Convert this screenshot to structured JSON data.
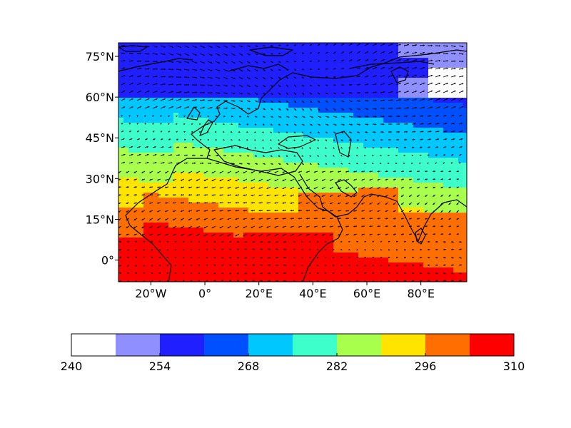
{
  "map": {
    "region": {
      "lon_min": -32,
      "lon_max": 97,
      "lat_min": -8,
      "lat_max": 80
    },
    "y_ticks": [
      {
        "lat": 75,
        "label": "75°N"
      },
      {
        "lat": 60,
        "label": "60°N"
      },
      {
        "lat": 45,
        "label": "45°N"
      },
      {
        "lat": 30,
        "label": "30°N"
      },
      {
        "lat": 15,
        "label": "15°N"
      },
      {
        "lat": 0,
        "label": "0°"
      }
    ],
    "x_ticks": [
      {
        "lon": -20,
        "label": "20°W"
      },
      {
        "lon": 0,
        "label": "0°"
      },
      {
        "lon": 20,
        "label": "20°E"
      },
      {
        "lon": 40,
        "label": "40°E"
      },
      {
        "lon": 60,
        "label": "60°E"
      },
      {
        "lon": 80,
        "label": "80°E"
      }
    ],
    "field": "temperature",
    "overlay": "wind vectors",
    "coastline_color": "#000000"
  },
  "colorbar": {
    "min": 240,
    "max": 310,
    "step": 7,
    "colors": [
      "#ffffff",
      "#8f8fff",
      "#1f1fff",
      "#0050ff",
      "#00c8ff",
      "#3cffcc",
      "#a8ff4c",
      "#ffe400",
      "#ff6e00",
      "#ff0000"
    ],
    "ticks": [
      {
        "value": 240,
        "label": "240"
      },
      {
        "value": 254,
        "label": "254"
      },
      {
        "value": 268,
        "label": "268"
      },
      {
        "value": 282,
        "label": "282"
      },
      {
        "value": 296,
        "label": "296"
      },
      {
        "value": 310,
        "label": "310"
      }
    ]
  }
}
